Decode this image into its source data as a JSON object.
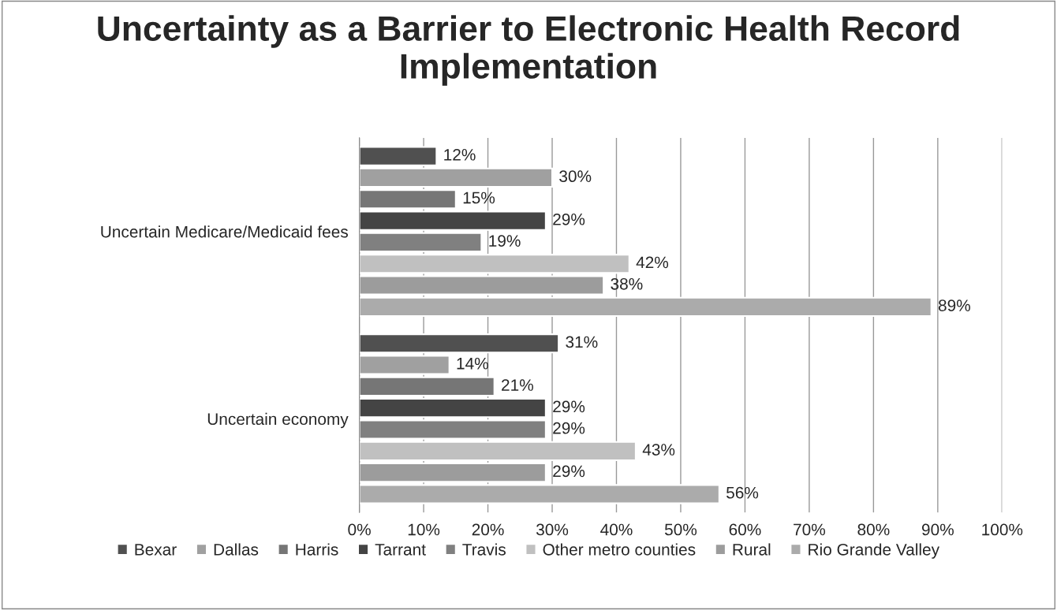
{
  "chart_data": {
    "type": "bar",
    "orientation": "horizontal",
    "title": "Uncertainty as a Barrier to Electronic Health Record Implementation",
    "categories": [
      "Uncertain Medicare/Medicaid fees",
      "Uncertain economy"
    ],
    "series": [
      {
        "name": "Bexar",
        "color": "#505050",
        "values": [
          12,
          31
        ],
        "value_labels": [
          "12%",
          "31%"
        ]
      },
      {
        "name": "Dallas",
        "color": "#a0a0a0",
        "values": [
          30,
          14
        ],
        "value_labels": [
          "30%",
          "14%"
        ]
      },
      {
        "name": "Harris",
        "color": "#767676",
        "values": [
          15,
          21
        ],
        "value_labels": [
          "15%",
          "21%"
        ]
      },
      {
        "name": "Tarrant",
        "color": "#444444",
        "values": [
          29,
          29
        ],
        "value_labels": [
          "29%",
          "29%"
        ]
      },
      {
        "name": "Travis",
        "color": "#808080",
        "values": [
          19,
          29
        ],
        "value_labels": [
          "19%",
          "29%"
        ]
      },
      {
        "name": "Other metro counties",
        "color": "#c0c0c0",
        "values": [
          42,
          43
        ],
        "value_labels": [
          "42%",
          "43%"
        ]
      },
      {
        "name": "Rural",
        "color": "#9c9c9c",
        "values": [
          38,
          29
        ],
        "value_labels": [
          "38%",
          "29%"
        ]
      },
      {
        "name": "Rio Grande Valley",
        "color": "#ababab",
        "values": [
          89,
          56
        ],
        "value_labels": [
          "89%",
          "56%"
        ]
      }
    ],
    "xlim": [
      0,
      100
    ],
    "xticks": [
      {
        "value": 0,
        "label": "0%"
      },
      {
        "value": 10,
        "label": "10%"
      },
      {
        "value": 20,
        "label": "20%"
      },
      {
        "value": 30,
        "label": "30%"
      },
      {
        "value": 40,
        "label": "40%"
      },
      {
        "value": 50,
        "label": "50%"
      },
      {
        "value": 60,
        "label": "60%"
      },
      {
        "value": 70,
        "label": "70%"
      },
      {
        "value": 80,
        "label": "80%"
      },
      {
        "value": 90,
        "label": "90%"
      },
      {
        "value": 100,
        "label": "100%"
      }
    ],
    "grid": "x",
    "legend": "bottom"
  }
}
